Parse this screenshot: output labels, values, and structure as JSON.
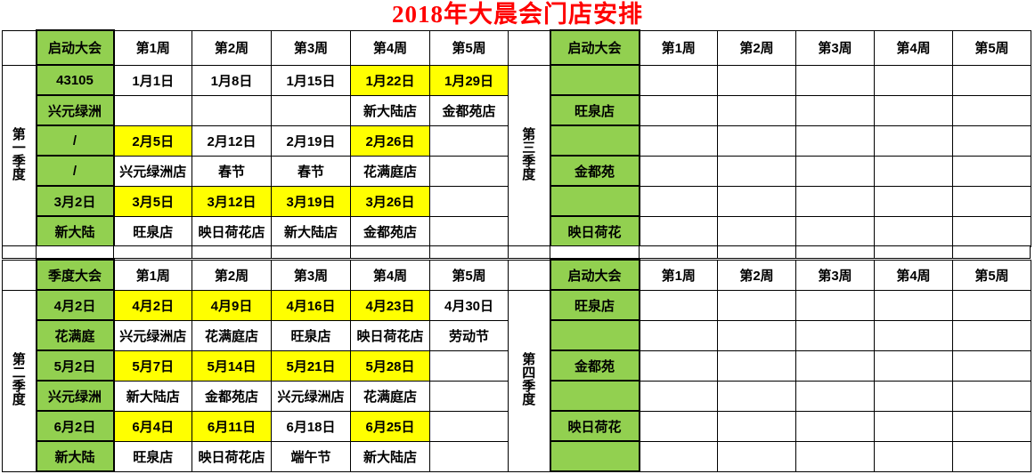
{
  "title": "2018年大晨会门店安排",
  "colors": {
    "green": "#92d050",
    "yellow": "#ffff00",
    "title-red": "#ff0000",
    "border": "#000000"
  },
  "quarters": [
    {
      "label": "第一季度",
      "header": [
        "启动大会",
        "第1周",
        "第2周",
        "第3周",
        "第4周",
        "第5周"
      ],
      "rows": [
        {
          "cells": [
            "43105",
            "1月1日",
            "1月8日",
            "1月15日",
            "1月22日",
            "1月29日"
          ],
          "bg": [
            "g",
            "w",
            "w",
            "w",
            "y",
            "y"
          ]
        },
        {
          "cells": [
            "兴元绿洲",
            "",
            "",
            "",
            "新大陆店",
            "金都苑店"
          ],
          "bg": [
            "g",
            "w",
            "w",
            "w",
            "w",
            "w"
          ]
        },
        {
          "cells": [
            "/",
            "2月5日",
            "2月12日",
            "2月19日",
            "2月26日",
            ""
          ],
          "bg": [
            "g",
            "y",
            "w",
            "w",
            "y",
            "w"
          ]
        },
        {
          "cells": [
            "/",
            "兴元绿洲店",
            "春节",
            "春节",
            "花满庭店",
            ""
          ],
          "bg": [
            "g",
            "w",
            "w",
            "w",
            "w",
            "w"
          ]
        },
        {
          "cells": [
            "3月2日",
            "3月5日",
            "3月12日",
            "3月19日",
            "3月26日",
            ""
          ],
          "bg": [
            "g",
            "y",
            "y",
            "y",
            "y",
            "w"
          ]
        },
        {
          "cells": [
            "新大陆",
            "旺泉店",
            "映日荷花店",
            "新大陆店",
            "金都苑店",
            ""
          ],
          "bg": [
            "g",
            "w",
            "w",
            "w",
            "w",
            "w"
          ]
        }
      ]
    },
    {
      "label": "第二季度",
      "header": [
        "季度大会",
        "第1周",
        "第2周",
        "第3周",
        "第4周",
        "第5周"
      ],
      "rows": [
        {
          "cells": [
            "4月2日",
            "4月2日",
            "4月9日",
            "4月16日",
            "4月23日",
            "4月30日"
          ],
          "bg": [
            "g",
            "y",
            "y",
            "y",
            "y",
            "w"
          ]
        },
        {
          "cells": [
            "花满庭",
            "兴元绿洲店",
            "花满庭店",
            "旺泉店",
            "映日荷花店",
            "劳动节"
          ],
          "bg": [
            "g",
            "w",
            "w",
            "w",
            "w",
            "w"
          ]
        },
        {
          "cells": [
            "5月2日",
            "5月7日",
            "5月14日",
            "5月21日",
            "5月28日",
            ""
          ],
          "bg": [
            "g",
            "y",
            "y",
            "y",
            "y",
            "w"
          ]
        },
        {
          "cells": [
            "兴元绿洲",
            "新大陆店",
            "金都苑店",
            "兴元绿洲店",
            "花满庭店",
            ""
          ],
          "bg": [
            "g",
            "w",
            "w",
            "w",
            "w",
            "w"
          ]
        },
        {
          "cells": [
            "6月2日",
            "6月4日",
            "6月11日",
            "6月18日",
            "6月25日",
            ""
          ],
          "bg": [
            "g",
            "y",
            "y",
            "w",
            "y",
            "w"
          ]
        },
        {
          "cells": [
            "新大陆",
            "旺泉店",
            "映日荷花店",
            "端午节",
            "新大陆店",
            ""
          ],
          "bg": [
            "g",
            "w",
            "w",
            "w",
            "w",
            "w"
          ]
        }
      ]
    },
    {
      "label": "第三季度",
      "header": [
        "启动大会",
        "第1周",
        "第2周",
        "第3周",
        "第4周",
        "第5周"
      ],
      "rows": [
        {
          "cells": [
            "",
            "",
            "",
            "",
            "",
            ""
          ],
          "bg": [
            "g",
            "w",
            "w",
            "w",
            "w",
            "w"
          ]
        },
        {
          "cells": [
            "旺泉店",
            "",
            "",
            "",
            "",
            ""
          ],
          "bg": [
            "g",
            "w",
            "w",
            "w",
            "w",
            "w"
          ]
        },
        {
          "cells": [
            "",
            "",
            "",
            "",
            "",
            ""
          ],
          "bg": [
            "g",
            "w",
            "w",
            "w",
            "w",
            "w"
          ]
        },
        {
          "cells": [
            "金都苑",
            "",
            "",
            "",
            "",
            ""
          ],
          "bg": [
            "g",
            "w",
            "w",
            "w",
            "w",
            "w"
          ]
        },
        {
          "cells": [
            "",
            "",
            "",
            "",
            "",
            ""
          ],
          "bg": [
            "g",
            "w",
            "w",
            "w",
            "w",
            "w"
          ]
        },
        {
          "cells": [
            "映日荷花",
            "",
            "",
            "",
            "",
            ""
          ],
          "bg": [
            "g",
            "w",
            "w",
            "w",
            "w",
            "w"
          ]
        }
      ]
    },
    {
      "label": "第四季度",
      "header": [
        "启动大会",
        "第1周",
        "第2周",
        "第3周",
        "第4周",
        "第5周"
      ],
      "rows": [
        {
          "cells": [
            "旺泉店",
            "",
            "",
            "",
            "",
            ""
          ],
          "bg": [
            "g",
            "w",
            "w",
            "w",
            "w",
            "w"
          ]
        },
        {
          "cells": [
            "",
            "",
            "",
            "",
            "",
            ""
          ],
          "bg": [
            "g",
            "w",
            "w",
            "w",
            "w",
            "w"
          ]
        },
        {
          "cells": [
            "金都苑",
            "",
            "",
            "",
            "",
            ""
          ],
          "bg": [
            "g",
            "w",
            "w",
            "w",
            "w",
            "w"
          ]
        },
        {
          "cells": [
            "",
            "",
            "",
            "",
            "",
            ""
          ],
          "bg": [
            "g",
            "w",
            "w",
            "w",
            "w",
            "w"
          ]
        },
        {
          "cells": [
            "映日荷花",
            "",
            "",
            "",
            "",
            ""
          ],
          "bg": [
            "g",
            "w",
            "w",
            "w",
            "w",
            "w"
          ]
        },
        {
          "cells": [
            "",
            "",
            "",
            "",
            "",
            ""
          ],
          "bg": [
            "g",
            "w",
            "w",
            "w",
            "w",
            "w"
          ]
        }
      ]
    }
  ]
}
